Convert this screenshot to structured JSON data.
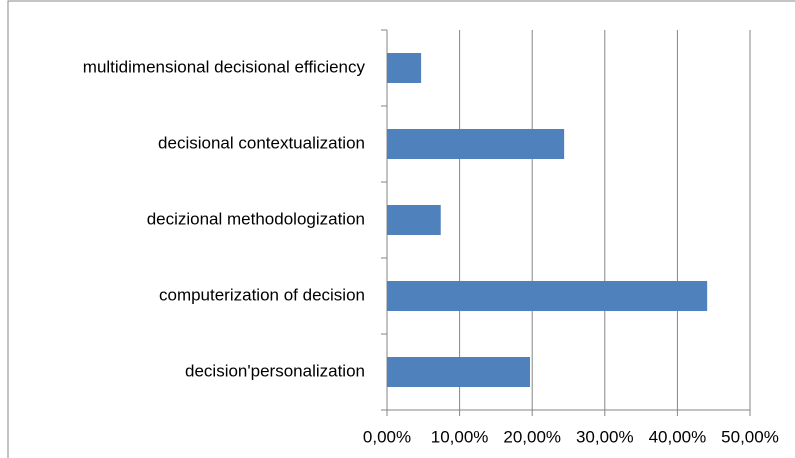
{
  "chart_data": {
    "type": "bar",
    "orientation": "horizontal",
    "categories": [
      "multidimensional decisional efficiency",
      "decisional contextualization",
      "decizional methodologization",
      "computerization of decision",
      "decision'personalization"
    ],
    "values": [
      4.7,
      24.4,
      7.4,
      44.1,
      19.7
    ],
    "color": "#4f81bd",
    "xlim": [
      0,
      50
    ],
    "xticks": [
      {
        "value": 0,
        "label": "0,00%"
      },
      {
        "value": 10,
        "label": "10,00%"
      },
      {
        "value": 20,
        "label": "20,00%"
      },
      {
        "value": 30,
        "label": "30,00%"
      },
      {
        "value": 40,
        "label": "40,00%"
      },
      {
        "value": 50,
        "label": "50,00%"
      }
    ],
    "grid": true
  }
}
